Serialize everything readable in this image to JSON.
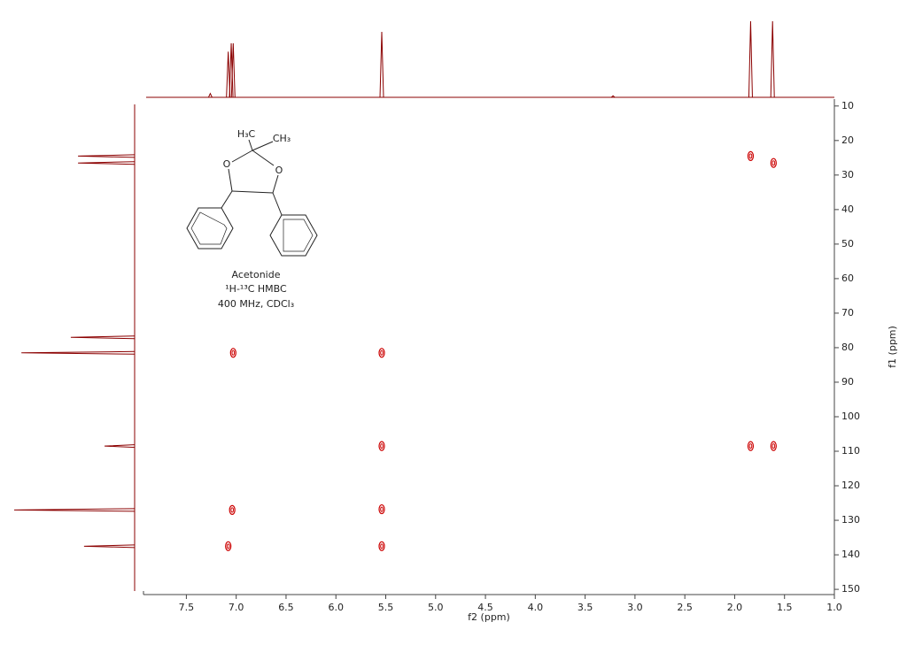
{
  "chart_data": {
    "type": "nmr2d",
    "xlabel": "f2 (ppm)",
    "ylabel": "f1 (ppm)",
    "xlim": [
      7.93,
      1.0
    ],
    "ylim": [
      8,
      151
    ],
    "xticks": [
      7.5,
      {
        "value": 7,
        "label": "7.0"
      },
      6.5,
      {
        "value": 6,
        "label": "6.0"
      },
      5.5,
      {
        "value": 5,
        "label": "5.0"
      },
      4.5,
      {
        "value": 4,
        "label": "4.0"
      },
      3.5,
      {
        "value": 3,
        "label": "3.0"
      },
      2.5,
      {
        "value": 2,
        "label": "2.0"
      },
      1.5,
      {
        "value": 1,
        "label": "1.0"
      }
    ],
    "yticks": [
      10,
      20,
      30,
      40,
      50,
      60,
      70,
      80,
      90,
      100,
      110,
      120,
      130,
      140,
      150
    ],
    "contour_color": "#cc0000",
    "spectrum_color": "#8b0000",
    "peaks": {
      "x": [
        1.84,
        1.61,
        7.03,
        5.54,
        5.54,
        1.84,
        1.61,
        7.04,
        5.54,
        7.08,
        5.54
      ],
      "y": [
        24.5,
        26.5,
        81.5,
        81.5,
        108.5,
        108.5,
        108.5,
        127,
        126.8,
        137.5,
        137.5
      ]
    },
    "f2_projection": {
      "x": [
        7.26,
        7.08,
        7.05,
        7.03,
        5.54,
        3.22,
        1.84,
        1.62
      ],
      "values": [
        5,
        60,
        71,
        71,
        86,
        2,
        100,
        100
      ]
    },
    "f1_projection": {
      "y": [
        24.5,
        26.5,
        77,
        81.5,
        108.5,
        127,
        137.5
      ],
      "values": [
        47,
        47,
        53,
        94,
        25,
        100,
        42
      ]
    },
    "annotation": {
      "name": "Acetonide",
      "experiment": "¹H-¹³C HMBC",
      "conditions": "400 MHz, CDCl₃",
      "molecule": {
        "methyl_left": "H₃C",
        "methyl_right": "CH₃",
        "oxygen_left": "O",
        "oxygen_right": "O"
      }
    }
  }
}
